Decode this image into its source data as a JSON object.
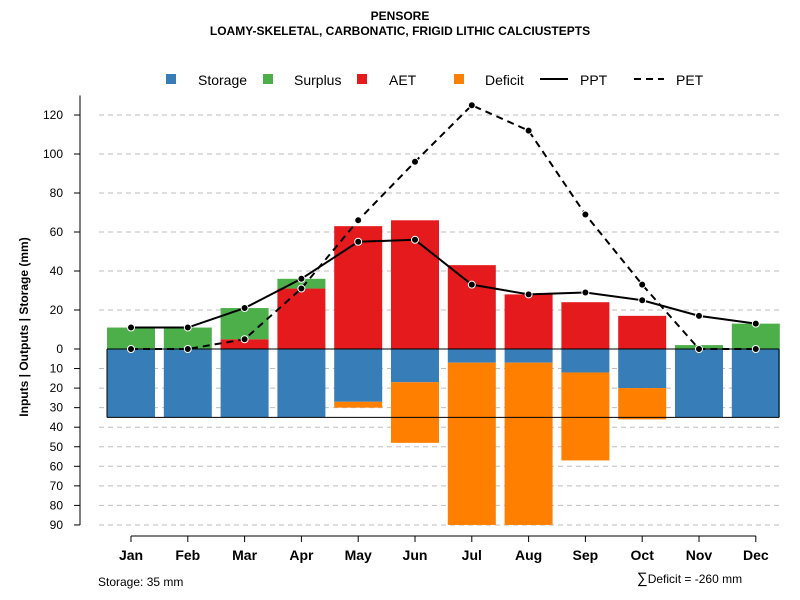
{
  "titles": {
    "line1": "PENSORE",
    "line2": "LOAMY-SKELETAL, CARBONATIC, FRIGID LITHIC CALCIUSTEPTS"
  },
  "footer": {
    "storage_note": "Storage: 35 mm",
    "deficit_symbol": "∑",
    "deficit_note": "Deficit = -260 mm"
  },
  "colors": {
    "storage": "#377EB8",
    "surplus": "#4DAF4A",
    "aet": "#E41A1C",
    "deficit": "#FF7F00",
    "line": "#000000",
    "grid": "#BEBEBE"
  },
  "chart_data": {
    "type": "bar",
    "ylabel": "Inputs | Outputs | Storage    (mm)",
    "legend": [
      "Storage",
      "Surplus",
      "AET",
      "Deficit",
      "PPT",
      "PET"
    ],
    "legend_position": "top",
    "upper_ylim": [
      0,
      130
    ],
    "upper_ticks": [
      0,
      20,
      40,
      60,
      80,
      100,
      120
    ],
    "lower_ylim": [
      0,
      90
    ],
    "lower_ticks": [
      10,
      20,
      30,
      40,
      50,
      60,
      70,
      80,
      90
    ],
    "storage_capacity": 35,
    "categories": [
      "Jan",
      "Feb",
      "Mar",
      "Apr",
      "May",
      "Jun",
      "Jul",
      "Aug",
      "Sep",
      "Oct",
      "Nov",
      "Dec"
    ],
    "aet": [
      0,
      0,
      5,
      31,
      63,
      66,
      43,
      28,
      24,
      17,
      0,
      0
    ],
    "surplus": [
      11,
      11,
      16,
      5,
      0,
      0,
      0,
      0,
      0,
      0,
      2,
      13
    ],
    "storage": [
      35,
      35,
      35,
      35,
      27,
      17,
      7,
      7,
      12,
      20,
      35,
      35
    ],
    "deficit": [
      0,
      0,
      0,
      0,
      3,
      31,
      83,
      83,
      45,
      16,
      0,
      0
    ],
    "ppt": [
      11,
      11,
      21,
      36,
      55,
      56,
      33,
      28,
      29,
      25,
      17,
      13
    ],
    "pet": [
      0,
      0,
      5,
      31,
      66,
      96,
      125,
      112,
      69,
      33,
      0,
      0
    ]
  }
}
